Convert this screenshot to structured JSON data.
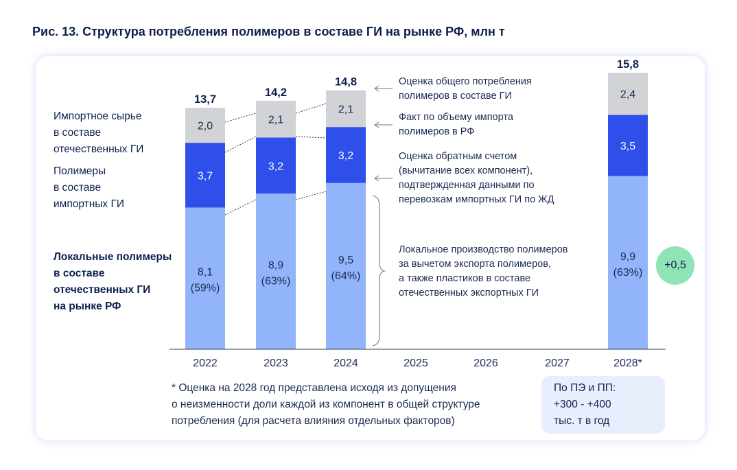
{
  "title": "Рис. 13. Структура потребления полимеров в составе ГИ на рынке РФ, млн т",
  "left_labels": [
    [
      "Импортное сырье",
      "в составе",
      "отечественных ГИ"
    ],
    [
      "Полимеры",
      "в составе",
      "импортных ГИ"
    ],
    [
      "Локальные полимеры",
      "в составе",
      "отечественных ГИ",
      "на рынке РФ"
    ]
  ],
  "annotations": [
    [
      "Оценка общего потребления",
      "полимеров в составе ГИ"
    ],
    [
      "Факт по объему импорта",
      "полимеров в РФ"
    ],
    [
      "Оценка обратным счетом",
      "(вычитание всех компонент),",
      "подтвержденная данными по",
      "перевозкам импортных ГИ по ЖД"
    ],
    [
      "Локальное производство полимеров",
      "за вычетом экспорта полимеров,",
      "а также пластиков в составе",
      "отечественных экспортных ГИ"
    ]
  ],
  "footnote": [
    "* Оценка на 2028 год представлена исходя из допущения",
    "о неизменности доли каждой из компонент в общей структуре",
    "потребления (для расчета влияния отдельных факторов)"
  ],
  "callout": [
    "По ПЭ и ПП:",
    "+300 - +400",
    "тыс. т в год"
  ],
  "badge": "+0,5",
  "colors": {
    "local": "#92b4fb",
    "import_gi": "#2f4fea",
    "import_raw": "#d2d3d6",
    "text_dark": "#0d1f4f",
    "badge": "#8fe3b5"
  },
  "chart_data": {
    "type": "bar",
    "stacked": true,
    "categories": [
      "2022",
      "2023",
      "2024",
      "2025",
      "2026",
      "2027",
      "2028*"
    ],
    "ylim": [
      0,
      16
    ],
    "series": [
      {
        "name": "Локальные полимеры в составе отечественных ГИ на рынке РФ",
        "values": [
          8.1,
          8.9,
          9.5,
          null,
          null,
          null,
          9.9
        ],
        "labels": [
          "8,1",
          "8,9",
          "9,5",
          "",
          "",
          "",
          "9,9"
        ],
        "shares": [
          "(59%)",
          "(63%)",
          "(64%)",
          "",
          "",
          "",
          "(63%)"
        ],
        "color": "#92b4fb"
      },
      {
        "name": "Полимеры в составе импортных ГИ",
        "values": [
          3.7,
          3.2,
          3.2,
          null,
          null,
          null,
          3.5
        ],
        "labels": [
          "3,7",
          "3,2",
          "3,2",
          "",
          "",
          "",
          "3,5"
        ],
        "color": "#2f4fea"
      },
      {
        "name": "Импортное сырье в составе отечественных ГИ",
        "values": [
          2.0,
          2.1,
          2.1,
          null,
          null,
          null,
          2.4
        ],
        "labels": [
          "2,0",
          "2,1",
          "2,1",
          "",
          "",
          "",
          "2,4"
        ],
        "color": "#d2d3d6"
      }
    ],
    "totals": [
      13.7,
      14.2,
      14.8,
      null,
      null,
      null,
      15.8
    ],
    "total_labels": [
      "13,7",
      "14,2",
      "14,8",
      "",
      "",
      "",
      "15,8"
    ]
  }
}
